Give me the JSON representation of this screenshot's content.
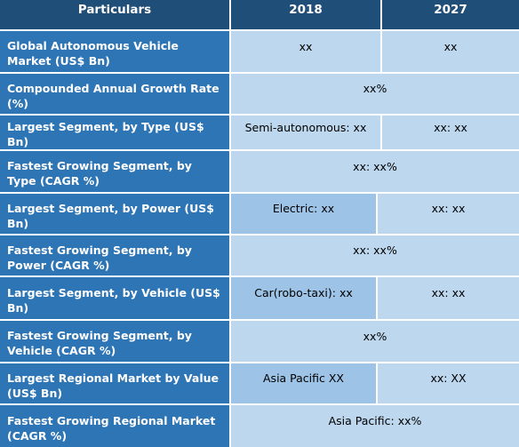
{
  "header": {
    "particulars": "Particulars",
    "year1": "2018",
    "year2": "2027"
  },
  "rows": [
    {
      "label": "Global Autonomous Vehicle Market (US$ Bn)",
      "v2018": "xx",
      "v2027": "xx"
    },
    {
      "label": "Compounded Annual Growth Rate (%)",
      "merged": "xx%"
    },
    {
      "label": "Largest Segment, by Type (US$ Bn)",
      "v2018": "Semi-autonomous: xx",
      "v2027": "xx: xx"
    },
    {
      "label": "Fastest Growing Segment, by Type (CAGR %)",
      "merged": "xx:  xx%"
    },
    {
      "label": "Largest Segment, by Power (US$ Bn)",
      "v2018": "Electric: xx",
      "v2027": "xx: xx"
    },
    {
      "label": "Fastest Growing Segment, by Power (CAGR %)",
      "merged": "xx:  xx%"
    },
    {
      "label": "Largest Segment, by Vehicle (US$ Bn)",
      "v2018": "Car(robo-taxi): xx",
      "v2027": "xx: xx"
    },
    {
      "label": "Fastest Growing Segment, by Vehicle (CAGR %)",
      "merged": "xx%"
    },
    {
      "label": "Largest Regional Market by Value (US$ Bn)",
      "v2018": "Asia Pacific XX",
      "v2027": "xx: XX"
    },
    {
      "label": "Fastest Growing Regional Market (CAGR %)",
      "merged": "Asia Pacific: xx%"
    }
  ]
}
